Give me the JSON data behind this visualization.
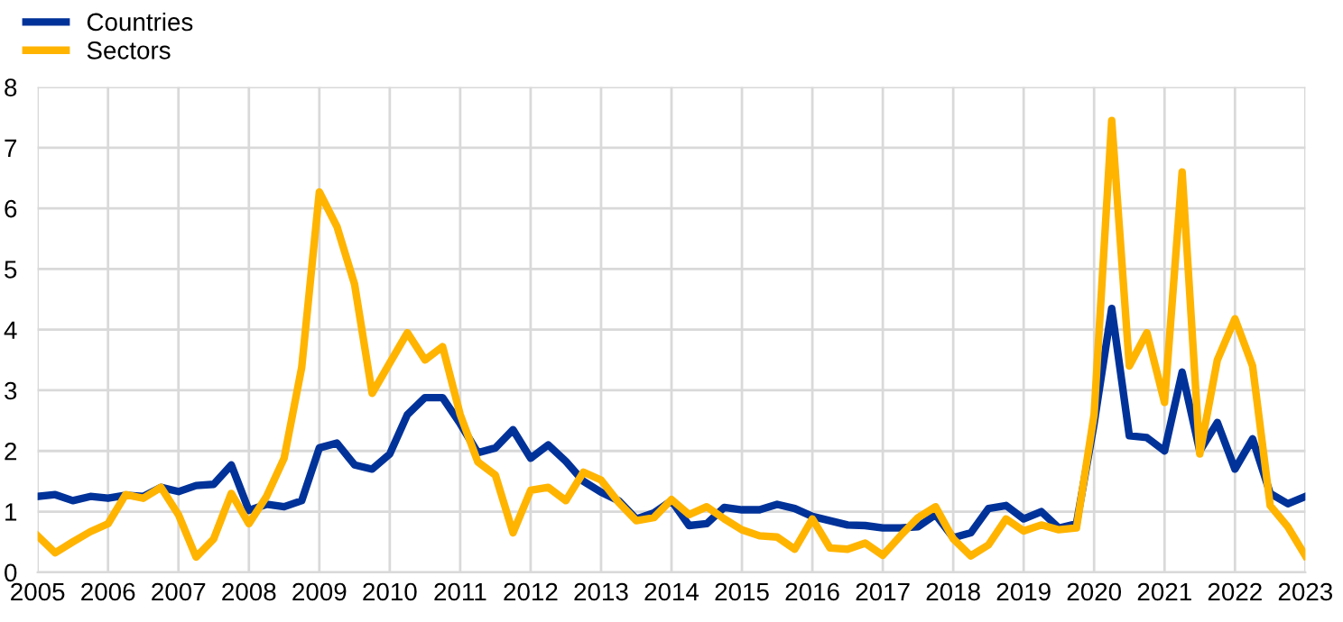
{
  "chart_data": {
    "type": "line",
    "x": [
      2005,
      2005.25,
      2005.5,
      2005.75,
      2006,
      2006.25,
      2006.5,
      2006.75,
      2007,
      2007.25,
      2007.5,
      2007.75,
      2008,
      2008.25,
      2008.5,
      2008.75,
      2009,
      2009.25,
      2009.5,
      2009.75,
      2010,
      2010.25,
      2010.5,
      2010.75,
      2011,
      2011.25,
      2011.5,
      2011.75,
      2012,
      2012.25,
      2012.5,
      2012.75,
      2013,
      2013.25,
      2013.5,
      2013.75,
      2014,
      2014.25,
      2014.5,
      2014.75,
      2015,
      2015.25,
      2015.5,
      2015.75,
      2016,
      2016.25,
      2016.5,
      2016.75,
      2017,
      2017.25,
      2017.5,
      2017.75,
      2018,
      2018.25,
      2018.5,
      2018.75,
      2019,
      2019.25,
      2019.5,
      2019.75,
      2020,
      2020.25,
      2020.5,
      2020.75,
      2021,
      2021.25,
      2021.5,
      2021.75,
      2022,
      2022.25,
      2022.5,
      2022.75,
      2023
    ],
    "series": [
      {
        "name": "Countries",
        "color": "#003299",
        "values": [
          1.25,
          1.28,
          1.18,
          1.25,
          1.22,
          1.27,
          1.25,
          1.4,
          1.33,
          1.43,
          1.45,
          1.77,
          1.02,
          1.12,
          1.08,
          1.18,
          2.05,
          2.13,
          1.77,
          1.7,
          1.95,
          2.6,
          2.88,
          2.88,
          2.45,
          1.97,
          2.05,
          2.35,
          1.88,
          2.1,
          1.83,
          1.5,
          1.32,
          1.18,
          0.88,
          0.98,
          1.18,
          0.77,
          0.8,
          1.07,
          1.03,
          1.03,
          1.12,
          1.05,
          0.92,
          0.85,
          0.78,
          0.77,
          0.73,
          0.73,
          0.75,
          0.95,
          0.57,
          0.65,
          1.05,
          1.1,
          0.88,
          1.0,
          0.73,
          0.8,
          2.45,
          4.35,
          2.25,
          2.22,
          2.0,
          3.3,
          2.0,
          2.47,
          1.7,
          2.2,
          1.3,
          1.13,
          1.25
        ]
      },
      {
        "name": "Sectors",
        "color": "#ffb400",
        "values": [
          0.6,
          0.32,
          0.5,
          0.67,
          0.8,
          1.28,
          1.22,
          1.4,
          0.95,
          0.25,
          0.55,
          1.3,
          0.8,
          1.25,
          1.88,
          3.38,
          6.27,
          5.7,
          4.75,
          2.95,
          3.45,
          3.95,
          3.5,
          3.72,
          2.6,
          1.82,
          1.6,
          0.65,
          1.35,
          1.4,
          1.18,
          1.65,
          1.52,
          1.15,
          0.85,
          0.9,
          1.2,
          0.95,
          1.08,
          0.88,
          0.7,
          0.6,
          0.58,
          0.38,
          0.88,
          0.4,
          0.38,
          0.48,
          0.28,
          0.6,
          0.9,
          1.08,
          0.55,
          0.27,
          0.45,
          0.88,
          0.68,
          0.78,
          0.7,
          0.73,
          2.6,
          7.45,
          3.4,
          3.95,
          2.8,
          6.6,
          1.95,
          3.5,
          4.18,
          3.4,
          1.1,
          0.75,
          0.27
        ]
      }
    ],
    "xlim": [
      2005,
      2023
    ],
    "xticks": [
      2005,
      2006,
      2007,
      2008,
      2009,
      2010,
      2011,
      2012,
      2013,
      2014,
      2015,
      2016,
      2017,
      2018,
      2019,
      2020,
      2021,
      2022,
      2023
    ],
    "ylim": [
      0,
      8
    ],
    "yticks": [
      0,
      1,
      2,
      3,
      4,
      5,
      6,
      7,
      8
    ],
    "grid": true,
    "legend": "top left",
    "line_style": "solid",
    "marker": "none"
  }
}
